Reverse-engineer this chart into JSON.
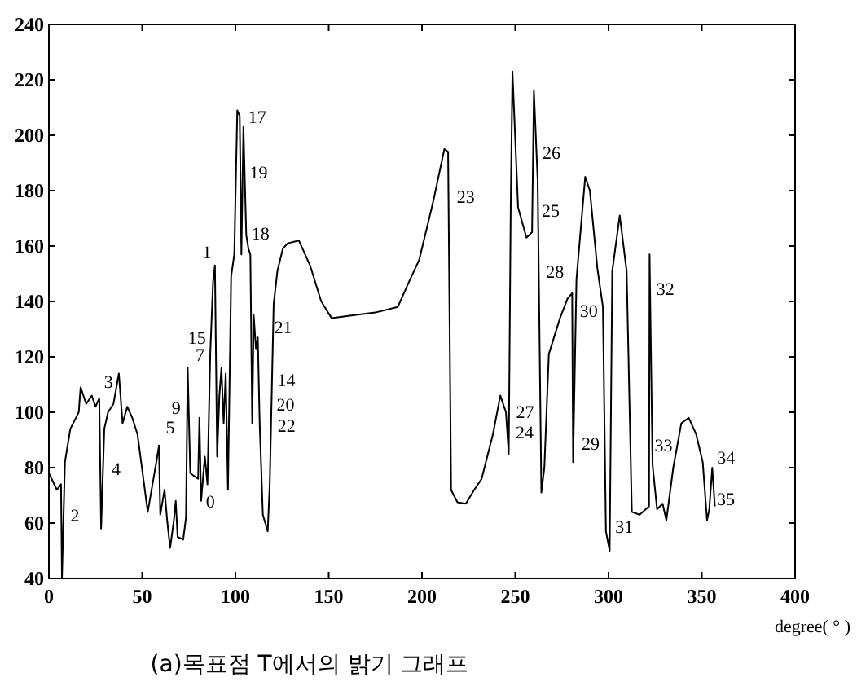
{
  "chart_data": {
    "type": "line",
    "title": "(a)목표점 T에서의 밝기 그래프",
    "xlabel": "degree( ° )",
    "xlim": [
      0,
      400
    ],
    "ylim": [
      40,
      240
    ],
    "xticks": [
      0,
      50,
      100,
      150,
      200,
      250,
      300,
      350,
      400
    ],
    "yticks": [
      40,
      60,
      80,
      100,
      120,
      140,
      160,
      180,
      200,
      220,
      240
    ],
    "series": [
      {
        "color": "#000000",
        "x": [
          0,
          4.3,
          6.5,
          7,
          8.6,
          11.5,
          16,
          17,
          20,
          23,
          25,
          27,
          28,
          29.7,
          31.7,
          34.6,
          37.5,
          39.5,
          42,
          44.7,
          47.5,
          53,
          57.6,
          59,
          59.7,
          62,
          63.4,
          65,
          67,
          68,
          69,
          72,
          73.5,
          74.4,
          75.8,
          77.8,
          80,
          80.7,
          81.6,
          83.6,
          85,
          86.5,
          88,
          89,
          90.2,
          91.4,
          92.5,
          93.7,
          94.8,
          96,
          97.7,
          99.4,
          101,
          102.3,
          103.2,
          104.3,
          105.8,
          107,
          108,
          109,
          109.8,
          111,
          112,
          113,
          114.7,
          117.3,
          118.4,
          120.5,
          122.5,
          125.4,
          128,
          134,
          140,
          146,
          151.5,
          163,
          175,
          187,
          193,
          198.5,
          206,
          212,
          214,
          215.6,
          219,
          223.5,
          228,
          232,
          238,
          242,
          245,
          246.5,
          247.6,
          248.5,
          251.5,
          256,
          259,
          260,
          262,
          264,
          265.6,
          268,
          274,
          278,
          280.5,
          281,
          282.8,
          287.5,
          290,
          294,
          297,
          298.6,
          300.6,
          302,
          306,
          309.7,
          312.5,
          316.7,
          321.7,
          322,
          323.6,
          326,
          329,
          331,
          334.7,
          339,
          343,
          347,
          350.5,
          352.8,
          354,
          355.6,
          357
        ],
        "values": [
          78,
          72,
          74,
          40,
          82,
          94,
          100,
          109,
          103,
          106,
          102,
          105,
          58,
          94,
          100,
          103,
          114,
          96,
          102,
          98,
          92,
          64,
          82,
          88,
          63,
          72,
          61,
          51,
          61,
          68,
          55,
          54,
          62,
          116,
          78,
          77,
          76,
          98,
          68,
          84,
          74,
          121,
          147,
          153,
          84,
          106,
          116,
          96,
          114,
          72,
          149,
          157,
          209,
          207,
          157,
          203,
          164,
          159,
          157,
          96,
          135,
          123,
          127,
          96,
          63,
          57,
          74,
          139,
          151,
          159,
          161,
          162,
          153,
          140,
          134,
          135,
          136,
          138,
          147,
          155,
          176,
          195,
          194,
          72,
          67.5,
          67,
          72,
          76,
          92,
          106,
          100,
          85,
          176,
          223,
          174,
          163,
          165,
          216,
          184,
          71,
          80,
          121,
          134,
          141,
          143,
          82,
          148,
          185,
          180,
          152,
          138,
          57,
          50,
          151,
          171,
          151,
          64,
          63,
          66,
          157,
          81,
          65,
          67,
          61,
          80,
          96,
          98,
          92,
          82,
          61,
          65,
          80,
          66
        ]
      }
    ],
    "annotations": [
      {
        "text": "2",
        "x": 9,
        "y": 59
      },
      {
        "text": "3",
        "x": 27,
        "y": 105
      },
      {
        "text": "4",
        "x": 31,
        "y": 76
      },
      {
        "text": "5",
        "x": 60,
        "y": 91
      },
      {
        "text": "7",
        "x": 76,
        "y": 117
      },
      {
        "text": "9",
        "x": 80.7,
        "y": 98
      },
      {
        "text": "0",
        "x": 81.6,
        "y": 68
      },
      {
        "text": "1",
        "x": 91,
        "y": 154
      },
      {
        "text": "15",
        "x": 99,
        "y": 121
      },
      {
        "text": "14",
        "x": 98,
        "y": 108
      },
      {
        "text": "17",
        "x": 104.3,
        "y": 203
      },
      {
        "text": "19",
        "x": 105,
        "y": 183
      },
      {
        "text": "18",
        "x": 106,
        "y": 161
      },
      {
        "text": "21",
        "x": 112,
        "y": 127
      },
      {
        "text": "20",
        "x": 109,
        "y": 99
      },
      {
        "text": "22",
        "x": 120,
        "y": 99
      },
      {
        "text": "23",
        "x": 216,
        "y": 174
      },
      {
        "text": "24",
        "x": 247.6,
        "y": 89
      },
      {
        "text": "25",
        "x": 259,
        "y": 169
      },
      {
        "text": "26",
        "x": 262,
        "y": 190
      },
      {
        "text": "27",
        "x": 267,
        "y": 94
      },
      {
        "text": "28",
        "x": 280.5,
        "y": 147
      },
      {
        "text": "29",
        "x": 283,
        "y": 85
      },
      {
        "text": "30",
        "x": 298.6,
        "y": 133
      },
      {
        "text": "31",
        "x": 301,
        "y": 55
      },
      {
        "text": "32",
        "x": 312.5,
        "y": 141
      },
      {
        "text": "33",
        "x": 322,
        "y": 82
      },
      {
        "text": "34",
        "x": 355.6,
        "y": 80
      },
      {
        "text": "35",
        "x": 355.5,
        "y": 65
      }
    ]
  }
}
